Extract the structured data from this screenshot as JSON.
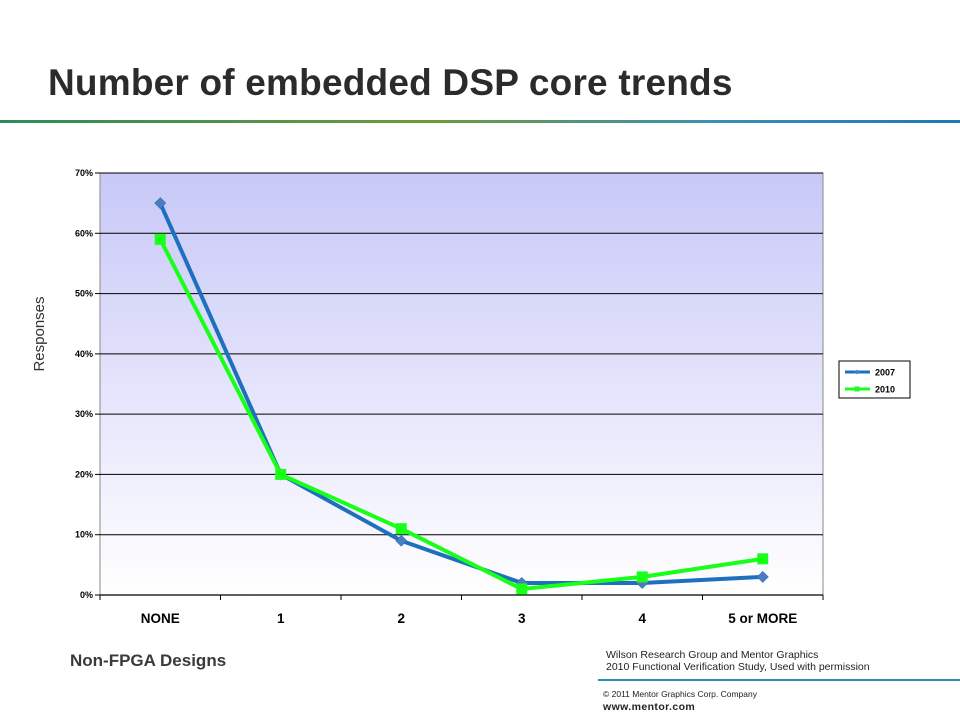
{
  "slide": {
    "title": "Number of embedded DSP core trends",
    "footer_label": "Non-FPGA Designs",
    "source_line1": "Wilson Research Group and Mentor Graphics",
    "source_line2": "2010 Functional Verification Study,  Used with permission",
    "copyright": "© 2011 Mentor Graphics Corp. Company",
    "website": "www.mentor.com"
  },
  "colors": {
    "series_2007": "#1f6fbf",
    "series_2007_marker": "#4a7ec4",
    "series_2010": "#19ff19",
    "plot_top": "#c8c8f8",
    "plot_bottom": "#ffffff",
    "title_rule_left": "#2f8a5a",
    "title_rule_right": "#1f78b4"
  },
  "chart_data": {
    "type": "line",
    "categories": [
      "NONE",
      "1",
      "2",
      "3",
      "4",
      "5 or MORE"
    ],
    "series": [
      {
        "name": "2007",
        "values": [
          65,
          20,
          9,
          2,
          2,
          3
        ]
      },
      {
        "name": "2010",
        "values": [
          59,
          20,
          11,
          1,
          3,
          6
        ]
      }
    ],
    "ylabel": "Responses",
    "ylim": [
      0,
      70
    ],
    "yticks": [
      "0%",
      "10%",
      "20%",
      "30%",
      "40%",
      "50%",
      "60%",
      "70%"
    ],
    "grid": true,
    "legend": "right"
  }
}
